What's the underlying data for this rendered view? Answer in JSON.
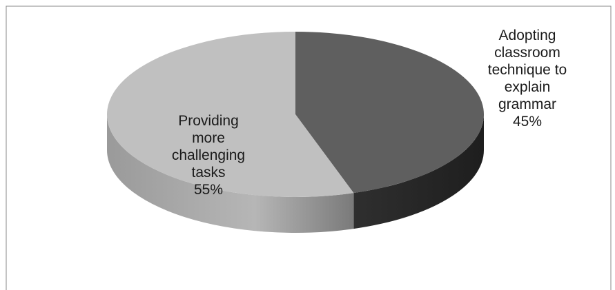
{
  "chart_data": {
    "type": "pie",
    "style": "3d",
    "title": "",
    "slices": [
      {
        "label_lines": [
          "Adopting",
          "classroom",
          "technique to",
          "explain",
          "grammar"
        ],
        "label_value": "45%",
        "value": 45,
        "color": "#5f5f5f",
        "side_color": "#2e2e2e"
      },
      {
        "label_lines": [
          "Providing",
          "more",
          "challenging",
          "tasks"
        ],
        "label_value": "55%",
        "value": 55,
        "color": "#c0c0c0",
        "side_color": "#8a8a8a"
      }
    ]
  }
}
